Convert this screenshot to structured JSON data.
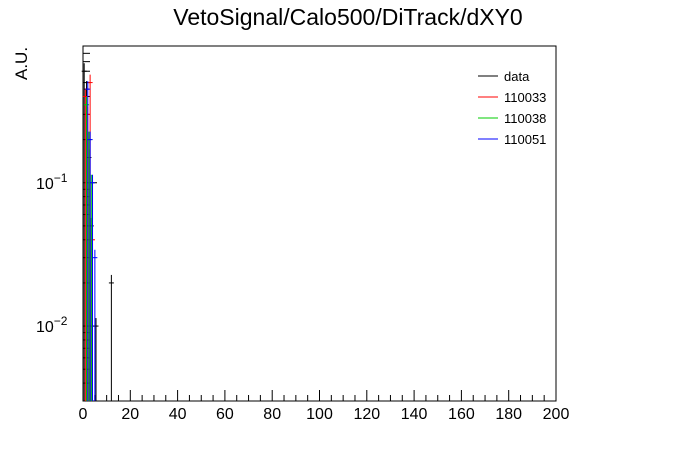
{
  "chart_data": {
    "type": "histogram",
    "title": "VetoSignal/Calo500/DiTrack/dXY0",
    "xlabel": "",
    "ylabel": "A.U.",
    "xlim": [
      0,
      200
    ],
    "ylim": [
      0.003,
      0.9
    ],
    "yscale": "log",
    "x_ticks": [
      "0",
      "20",
      "40",
      "60",
      "80",
      "100",
      "120",
      "140",
      "160",
      "180",
      "200"
    ],
    "y_ticks": [
      {
        "value": 0.1,
        "base": "10",
        "exp": "−1"
      },
      {
        "value": 0.01,
        "base": "10",
        "exp": "−2"
      }
    ],
    "legend_position": "top-right",
    "series": [
      {
        "name": "data",
        "color": "#000000",
        "bins": [
          {
            "x": 0.5,
            "y": 0.6
          },
          {
            "x": 1.5,
            "y": 0.45
          },
          {
            "x": 2.5,
            "y": 0.15
          },
          {
            "x": 3.5,
            "y": 0.05
          },
          {
            "x": 5.5,
            "y": 0.01
          },
          {
            "x": 12,
            "y": 0.02
          }
        ]
      },
      {
        "name": "110033",
        "color": "#ff0000",
        "bins": [
          {
            "x": 0.5,
            "y": 0.4
          },
          {
            "x": 1.5,
            "y": 0.3
          },
          {
            "x": 2.5,
            "y": 0.5
          },
          {
            "x": 3.5,
            "y": 0.04
          }
        ]
      },
      {
        "name": "110038",
        "color": "#00cc00",
        "bins": [
          {
            "x": 0.5,
            "y": 0.35
          },
          {
            "x": 1.5,
            "y": 0.2
          },
          {
            "x": 2.5,
            "y": 0.1
          }
        ]
      },
      {
        "name": "110051",
        "color": "#0000ff",
        "bins": [
          {
            "x": 0.5,
            "y": 0.45
          },
          {
            "x": 1.5,
            "y": 0.2
          },
          {
            "x": 2.5,
            "y": 0.1
          },
          {
            "x": 3.5,
            "y": 0.03
          }
        ]
      }
    ]
  }
}
